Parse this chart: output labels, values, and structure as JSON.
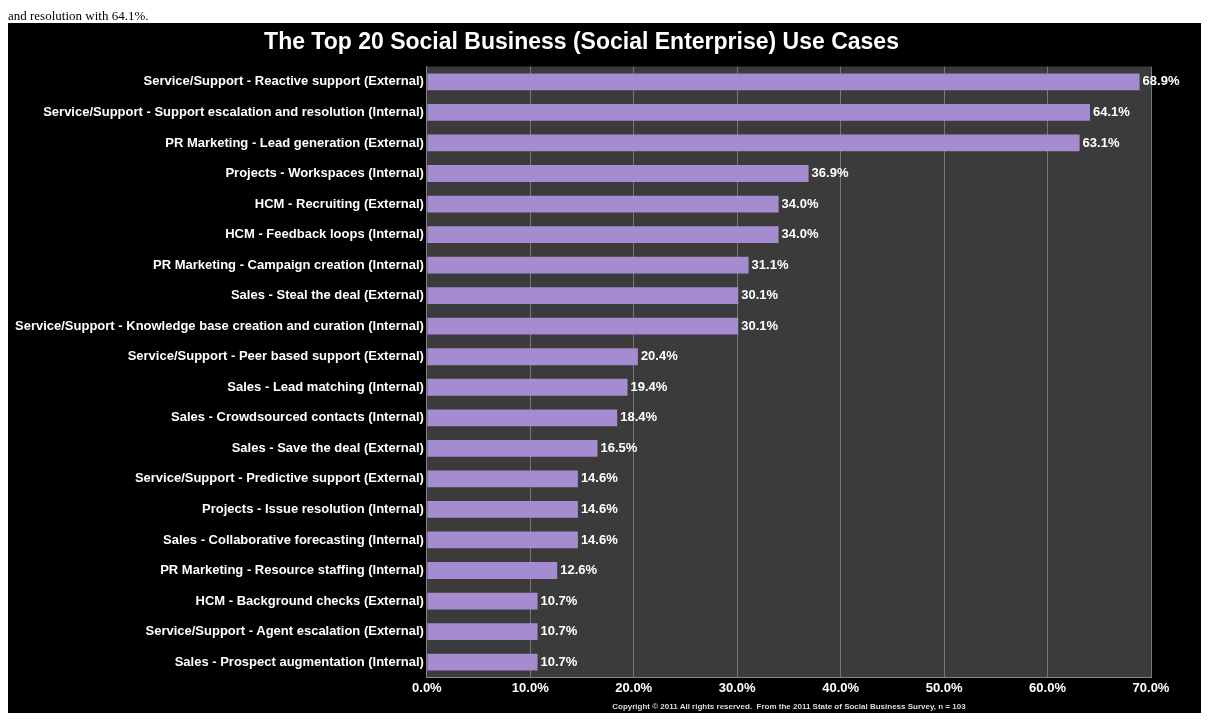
{
  "chart_data": {
    "type": "bar",
    "orientation": "horizontal",
    "title": "The Top 20 Social Business (Social Enterprise) Use Cases",
    "categories": [
      "Service/Support - Reactive support (External)",
      "Service/Support - Support escalation and resolution (Internal)",
      "PR Marketing - Lead generation (External)",
      "Projects - Workspaces (Internal)",
      "HCM - Recruiting (External)",
      "HCM - Feedback loops (Internal)",
      "PR Marketing - Campaign creation (Internal)",
      "Sales - Steal the deal (External)",
      "Service/Support - Knowledge base creation and curation (Internal)",
      "Service/Support - Peer based support (External)",
      "Sales - Lead matching (Internal)",
      "Sales - Crowdsourced contacts (Internal)",
      "Sales - Save the deal (External)",
      "Service/Support - Predictive support (External)",
      "Projects - Issue resolution (Internal)",
      "Sales - Collaborative forecasting (Internal)",
      "PR Marketing - Resource staffing (Internal)",
      "HCM - Background checks (External)",
      "Service/Support - Agent escalation (External)",
      "Sales - Prospect augmentation (Internal)"
    ],
    "values": [
      68.9,
      64.1,
      63.1,
      36.9,
      34.0,
      34.0,
      31.1,
      30.1,
      30.1,
      20.4,
      19.4,
      18.4,
      16.5,
      14.6,
      14.6,
      14.6,
      12.6,
      10.7,
      10.7,
      10.7
    ],
    "value_labels": [
      "68.9%",
      "64.1%",
      "63.1%",
      "36.9%",
      "34.0%",
      "34.0%",
      "31.1%",
      "30.1%",
      "30.1%",
      "20.4%",
      "19.4%",
      "18.4%",
      "16.5%",
      "14.6%",
      "14.6%",
      "14.6%",
      "12.6%",
      "10.7%",
      "10.7%",
      "10.7%"
    ],
    "color": "#a58bd0",
    "xlim": [
      0,
      70
    ],
    "xticks": [
      {
        "value": 0,
        "label": "0.0%"
      },
      {
        "value": 10,
        "label": "10.0%"
      },
      {
        "value": 20,
        "label": "20.0%"
      },
      {
        "value": 30,
        "label": "30.0%"
      },
      {
        "value": 40,
        "label": "40.0%"
      },
      {
        "value": 50,
        "label": "50.0%"
      },
      {
        "value": 60,
        "label": "60.0%"
      },
      {
        "value": 70,
        "label": "70.0%"
      }
    ],
    "grid": "x",
    "legend": false,
    "annotations": [
      "and resolution with 64.1%.",
      "Copyright © 2011 All rights reserved.  From the 2011 State of Social Business Survey, n = 103"
    ]
  }
}
